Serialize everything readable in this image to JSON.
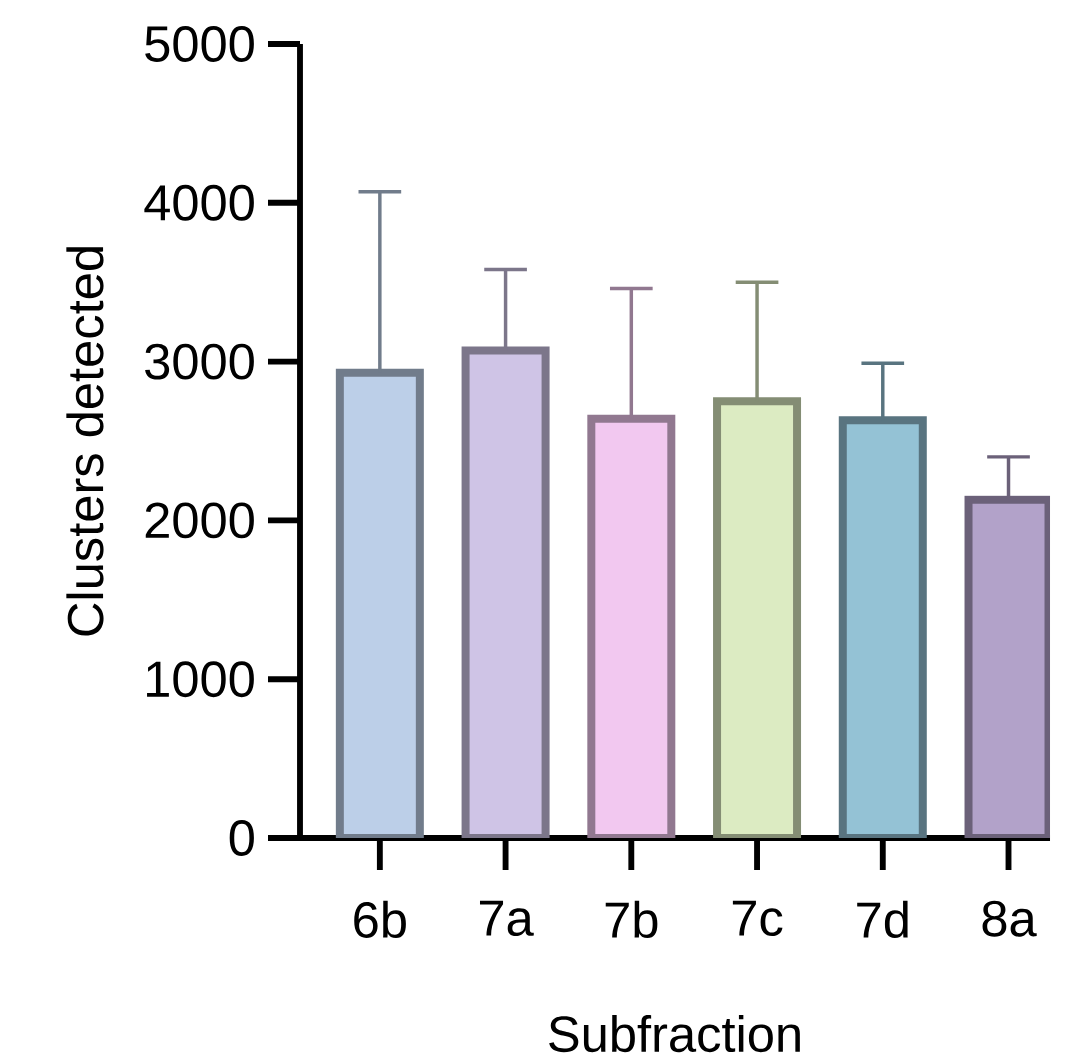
{
  "chart_data": {
    "type": "bar",
    "xlabel": "Subfraction",
    "ylabel": "Clusters detected",
    "categories": [
      "6b",
      "7a",
      "7b",
      "7c",
      "7d",
      "8a"
    ],
    "values": [
      2930,
      3070,
      2640,
      2750,
      2630,
      2130
    ],
    "errors": [
      1140,
      510,
      820,
      750,
      360,
      270
    ],
    "colors": [
      "#bccfe8",
      "#cfc4e6",
      "#f2c8f0",
      "#dcebc2",
      "#94c2d5",
      "#b2a2c9"
    ],
    "ylim": [
      0,
      5000
    ],
    "yticks": [
      0,
      1000,
      2000,
      3000,
      4000,
      5000
    ],
    "grid": false
  }
}
